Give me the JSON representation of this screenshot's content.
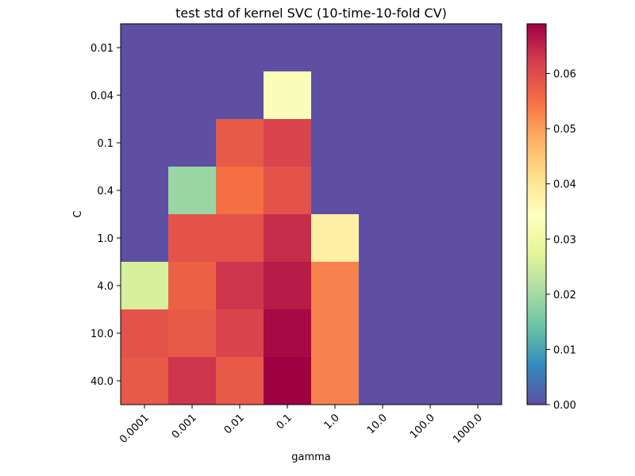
{
  "chart_data": {
    "type": "heatmap",
    "title": "test std of kernel SVC (10-time-10-fold CV)",
    "xlabel": "gamma",
    "ylabel": "C",
    "x_categories": [
      "0.0001",
      "0.001",
      "0.01",
      "0.1",
      "1.0",
      "10.0",
      "100.0",
      "1000.0"
    ],
    "y_categories": [
      "0.01",
      "0.04",
      "0.1",
      "0.4",
      "1.0",
      "4.0",
      "10.0",
      "40.0"
    ],
    "values": [
      [
        0.0,
        0.0,
        0.0,
        0.0,
        0.0,
        0.0,
        0.0,
        0.0
      ],
      [
        0.0,
        0.0,
        0.0,
        0.033,
        0.0,
        0.0,
        0.0,
        0.0
      ],
      [
        0.0,
        0.0,
        0.058,
        0.061,
        0.0,
        0.0,
        0.0,
        0.0
      ],
      [
        0.0,
        0.019,
        0.055,
        0.059,
        0.0,
        0.0,
        0.0,
        0.0
      ],
      [
        0.0,
        0.059,
        0.059,
        0.064,
        0.038,
        0.0,
        0.0,
        0.0
      ],
      [
        0.026,
        0.057,
        0.063,
        0.066,
        0.053,
        0.0,
        0.0,
        0.0
      ],
      [
        0.059,
        0.058,
        0.061,
        0.068,
        0.053,
        0.0,
        0.0,
        0.0
      ],
      [
        0.058,
        0.063,
        0.058,
        0.069,
        0.053,
        0.0,
        0.0,
        0.0
      ]
    ],
    "colormap": "Spectral_r",
    "vmin": 0.0,
    "vmax": 0.069,
    "colorbar_ticks": [
      "0.00",
      "0.01",
      "0.02",
      "0.03",
      "0.04",
      "0.05",
      "0.06"
    ],
    "colorbar_tick_values": [
      0.0,
      0.01,
      0.02,
      0.03,
      0.04,
      0.05,
      0.06
    ],
    "colorbar_placement": "right",
    "grid": false
  }
}
